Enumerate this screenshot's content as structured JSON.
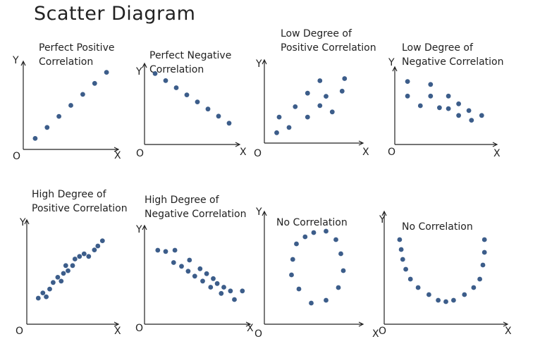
{
  "title": "Scatter Diagram",
  "axis_letters": {
    "x": "X",
    "y": "Y",
    "origin": "O"
  },
  "chart_data": [
    {
      "type": "scatter",
      "title_lines": [
        "Perfect Positive",
        "Correlation"
      ],
      "points": [
        [
          1,
          1
        ],
        [
          2,
          2
        ],
        [
          3,
          3
        ],
        [
          4,
          4
        ],
        [
          5,
          5
        ],
        [
          6,
          6
        ],
        [
          7,
          7
        ]
      ],
      "xlim": [
        0,
        8
      ],
      "ylim": [
        0,
        8
      ]
    },
    {
      "type": "scatter",
      "title_lines": [
        "Perfect Negative",
        "Correlation"
      ],
      "points": [
        [
          1,
          7
        ],
        [
          2,
          6.3
        ],
        [
          3,
          5.6
        ],
        [
          4,
          4.9
        ],
        [
          5,
          4.2
        ],
        [
          6,
          3.5
        ],
        [
          7,
          2.8
        ],
        [
          8,
          2.1
        ]
      ],
      "xlim": [
        0,
        9
      ],
      "ylim": [
        0,
        8
      ]
    },
    {
      "type": "scatter",
      "title_lines": [
        "Low Degree of",
        "Positive Correlation"
      ],
      "points": [
        [
          1,
          1
        ],
        [
          1.2,
          2.5
        ],
        [
          2,
          1.5
        ],
        [
          2.5,
          3.5
        ],
        [
          3.5,
          2.5
        ],
        [
          3.5,
          4.8
        ],
        [
          4.5,
          3.6
        ],
        [
          4.5,
          6
        ],
        [
          5,
          4.5
        ],
        [
          5.5,
          3
        ],
        [
          6.3,
          5
        ],
        [
          6.5,
          6.2
        ]
      ],
      "xlim": [
        0,
        8
      ],
      "ylim": [
        0,
        8
      ]
    },
    {
      "type": "scatter",
      "title_lines": [
        "Low Degree of",
        "Negative Correlation"
      ],
      "points": [
        [
          1,
          6.5
        ],
        [
          1,
          5
        ],
        [
          2,
          4
        ],
        [
          2.8,
          6.2
        ],
        [
          2.8,
          5
        ],
        [
          3.5,
          3.8
        ],
        [
          4.2,
          3.7
        ],
        [
          4.2,
          5
        ],
        [
          5,
          4.2
        ],
        [
          5,
          3
        ],
        [
          5.8,
          3.5
        ],
        [
          6,
          2.5
        ],
        [
          6.8,
          3
        ]
      ],
      "xlim": [
        0,
        8
      ],
      "ylim": [
        0,
        8
      ]
    },
    {
      "type": "scatter",
      "title_lines": [
        "High Degree of",
        "Positive Correlation"
      ],
      "points": [
        [
          1,
          2
        ],
        [
          1.4,
          2.4
        ],
        [
          1.7,
          2.1
        ],
        [
          2,
          2.7
        ],
        [
          2.3,
          3.2
        ],
        [
          2.7,
          3.6
        ],
        [
          3,
          3.3
        ],
        [
          3.2,
          3.9
        ],
        [
          3.4,
          4.5
        ],
        [
          3.6,
          4.1
        ],
        [
          4,
          4.5
        ],
        [
          4.2,
          5
        ],
        [
          4.6,
          5.2
        ],
        [
          5,
          5.4
        ],
        [
          5.4,
          5.2
        ],
        [
          5.9,
          5.7
        ],
        [
          6.2,
          6
        ],
        [
          6.6,
          6.4
        ]
      ],
      "xlim": [
        0,
        8
      ],
      "ylim": [
        0,
        8
      ]
    },
    {
      "type": "scatter",
      "title_lines": [
        "High Degree of",
        "Negative Correlation"
      ],
      "points": [
        [
          1,
          6
        ],
        [
          1.6,
          5.9
        ],
        [
          2.3,
          6
        ],
        [
          2.2,
          5
        ],
        [
          2.8,
          4.7
        ],
        [
          3.3,
          4.3
        ],
        [
          3.4,
          5.2
        ],
        [
          3.8,
          3.9
        ],
        [
          4.2,
          4.5
        ],
        [
          4.4,
          3.5
        ],
        [
          4.7,
          4.1
        ],
        [
          5,
          3
        ],
        [
          5.2,
          3.7
        ],
        [
          5.5,
          3.3
        ],
        [
          5.8,
          2.5
        ],
        [
          6,
          3
        ],
        [
          6.5,
          2.7
        ],
        [
          6.8,
          2
        ],
        [
          7.4,
          2.7
        ]
      ],
      "xlim": [
        0,
        8
      ],
      "ylim": [
        0,
        8
      ]
    },
    {
      "type": "scatter",
      "title_lines": [
        "No Correlation"
      ],
      "points": [
        [
          4,
          6.5
        ],
        [
          5,
          6.6
        ],
        [
          3.3,
          6.2
        ],
        [
          5.8,
          6
        ],
        [
          2.6,
          5.7
        ],
        [
          6.2,
          5
        ],
        [
          2.3,
          4.6
        ],
        [
          6.4,
          3.8
        ],
        [
          2.2,
          3.5
        ],
        [
          6,
          2.6
        ],
        [
          2.8,
          2.5
        ],
        [
          5,
          1.7
        ],
        [
          3.8,
          1.5
        ]
      ],
      "xlim": [
        0,
        8
      ],
      "ylim": [
        0,
        8
      ]
    },
    {
      "type": "scatter",
      "title_lines": [
        "No Correlation"
      ],
      "points": [
        [
          1,
          6
        ],
        [
          6.5,
          6
        ],
        [
          1.1,
          5.3
        ],
        [
          6.5,
          5.1
        ],
        [
          1.2,
          4.6
        ],
        [
          6.4,
          4.2
        ],
        [
          1.4,
          3.9
        ],
        [
          6.2,
          3.2
        ],
        [
          1.7,
          3.2
        ],
        [
          5.8,
          2.6
        ],
        [
          2.2,
          2.6
        ],
        [
          5.2,
          2.1
        ],
        [
          2.9,
          2.1
        ],
        [
          4.5,
          1.7
        ],
        [
          3.5,
          1.7
        ],
        [
          4,
          1.6
        ]
      ],
      "xlim": [
        0,
        8
      ],
      "ylim": [
        0,
        8
      ]
    }
  ]
}
